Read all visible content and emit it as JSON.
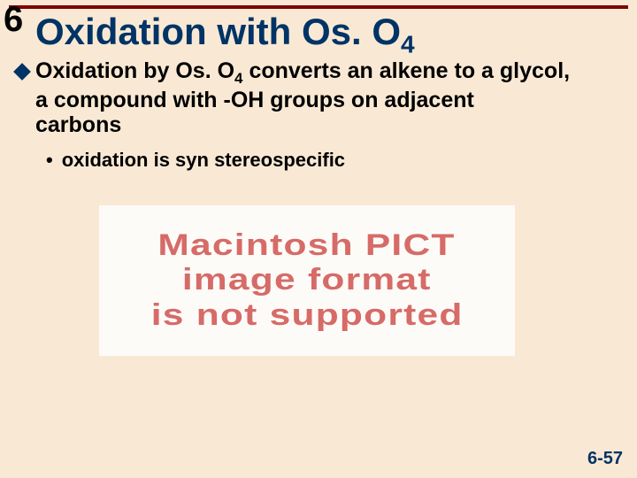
{
  "colors": {
    "background": "#f9e9d4",
    "rule": "#7d0000",
    "heading": "#003366",
    "body_text": "#000000",
    "pict_text": "#d66b67",
    "pict_bg": "#fdfbf8",
    "page_num": "#003366"
  },
  "chapter_number": "6",
  "title": {
    "pre": "Oxidation with Os. O",
    "sub": "4"
  },
  "bullet": {
    "line1_pre": "Oxidation by Os. O",
    "line1_sub": "4",
    "line1_post": " converts an alkene to a glycol,",
    "line2": "a compound with -OH groups on adjacent",
    "line3": "carbons"
  },
  "sub_bullet": "oxidation is syn stereospecific",
  "pict": {
    "line1": "Macintosh PICT",
    "line2": "image format",
    "line3": "is not supported"
  },
  "page_number": "6-57"
}
